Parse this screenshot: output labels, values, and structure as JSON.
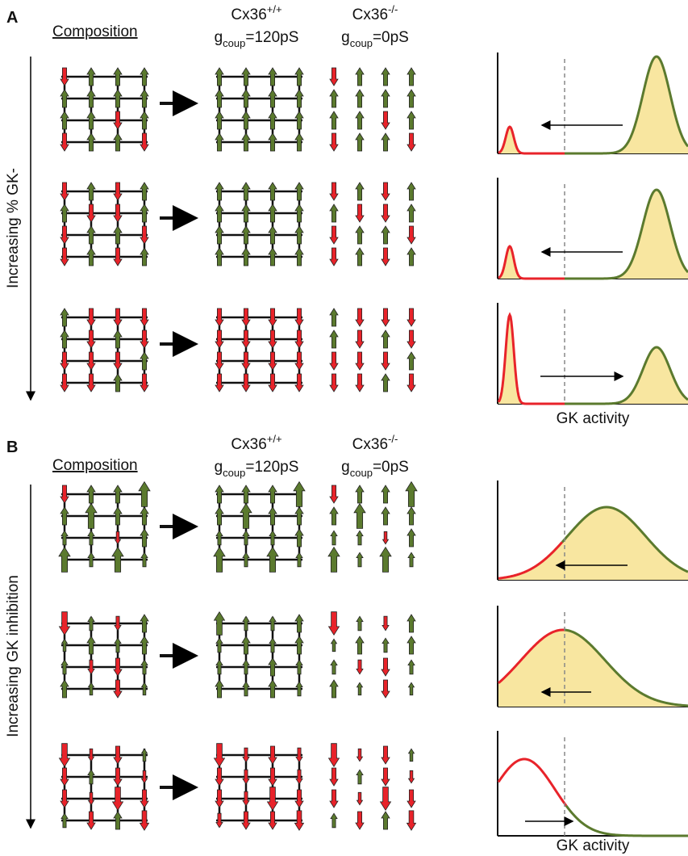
{
  "panels": [
    {
      "label": "A",
      "composition": "Composition",
      "wt": {
        "name": "Cx36",
        "sup": "+/+",
        "g": "g",
        "sub": "coup",
        "value": "=120pS"
      },
      "ko": {
        "name": "Cx36",
        "sup": "-/-",
        "g": "g",
        "sub": "coup",
        "value": "=0pS"
      },
      "axis_label": "Increasing % GK-",
      "xlabel": "GK activity"
    },
    {
      "label": "B",
      "composition": "Composition",
      "wt": {
        "name": "Cx36",
        "sup": "+/+",
        "g": "g",
        "sub": "coup",
        "value": "=120pS"
      },
      "ko": {
        "name": "Cx36",
        "sup": "-/-",
        "g": "g",
        "sub": "coup",
        "value": "=0pS"
      },
      "axis_label": "Increasing GK inhibition",
      "xlabel": "GK activity"
    }
  ]
}
